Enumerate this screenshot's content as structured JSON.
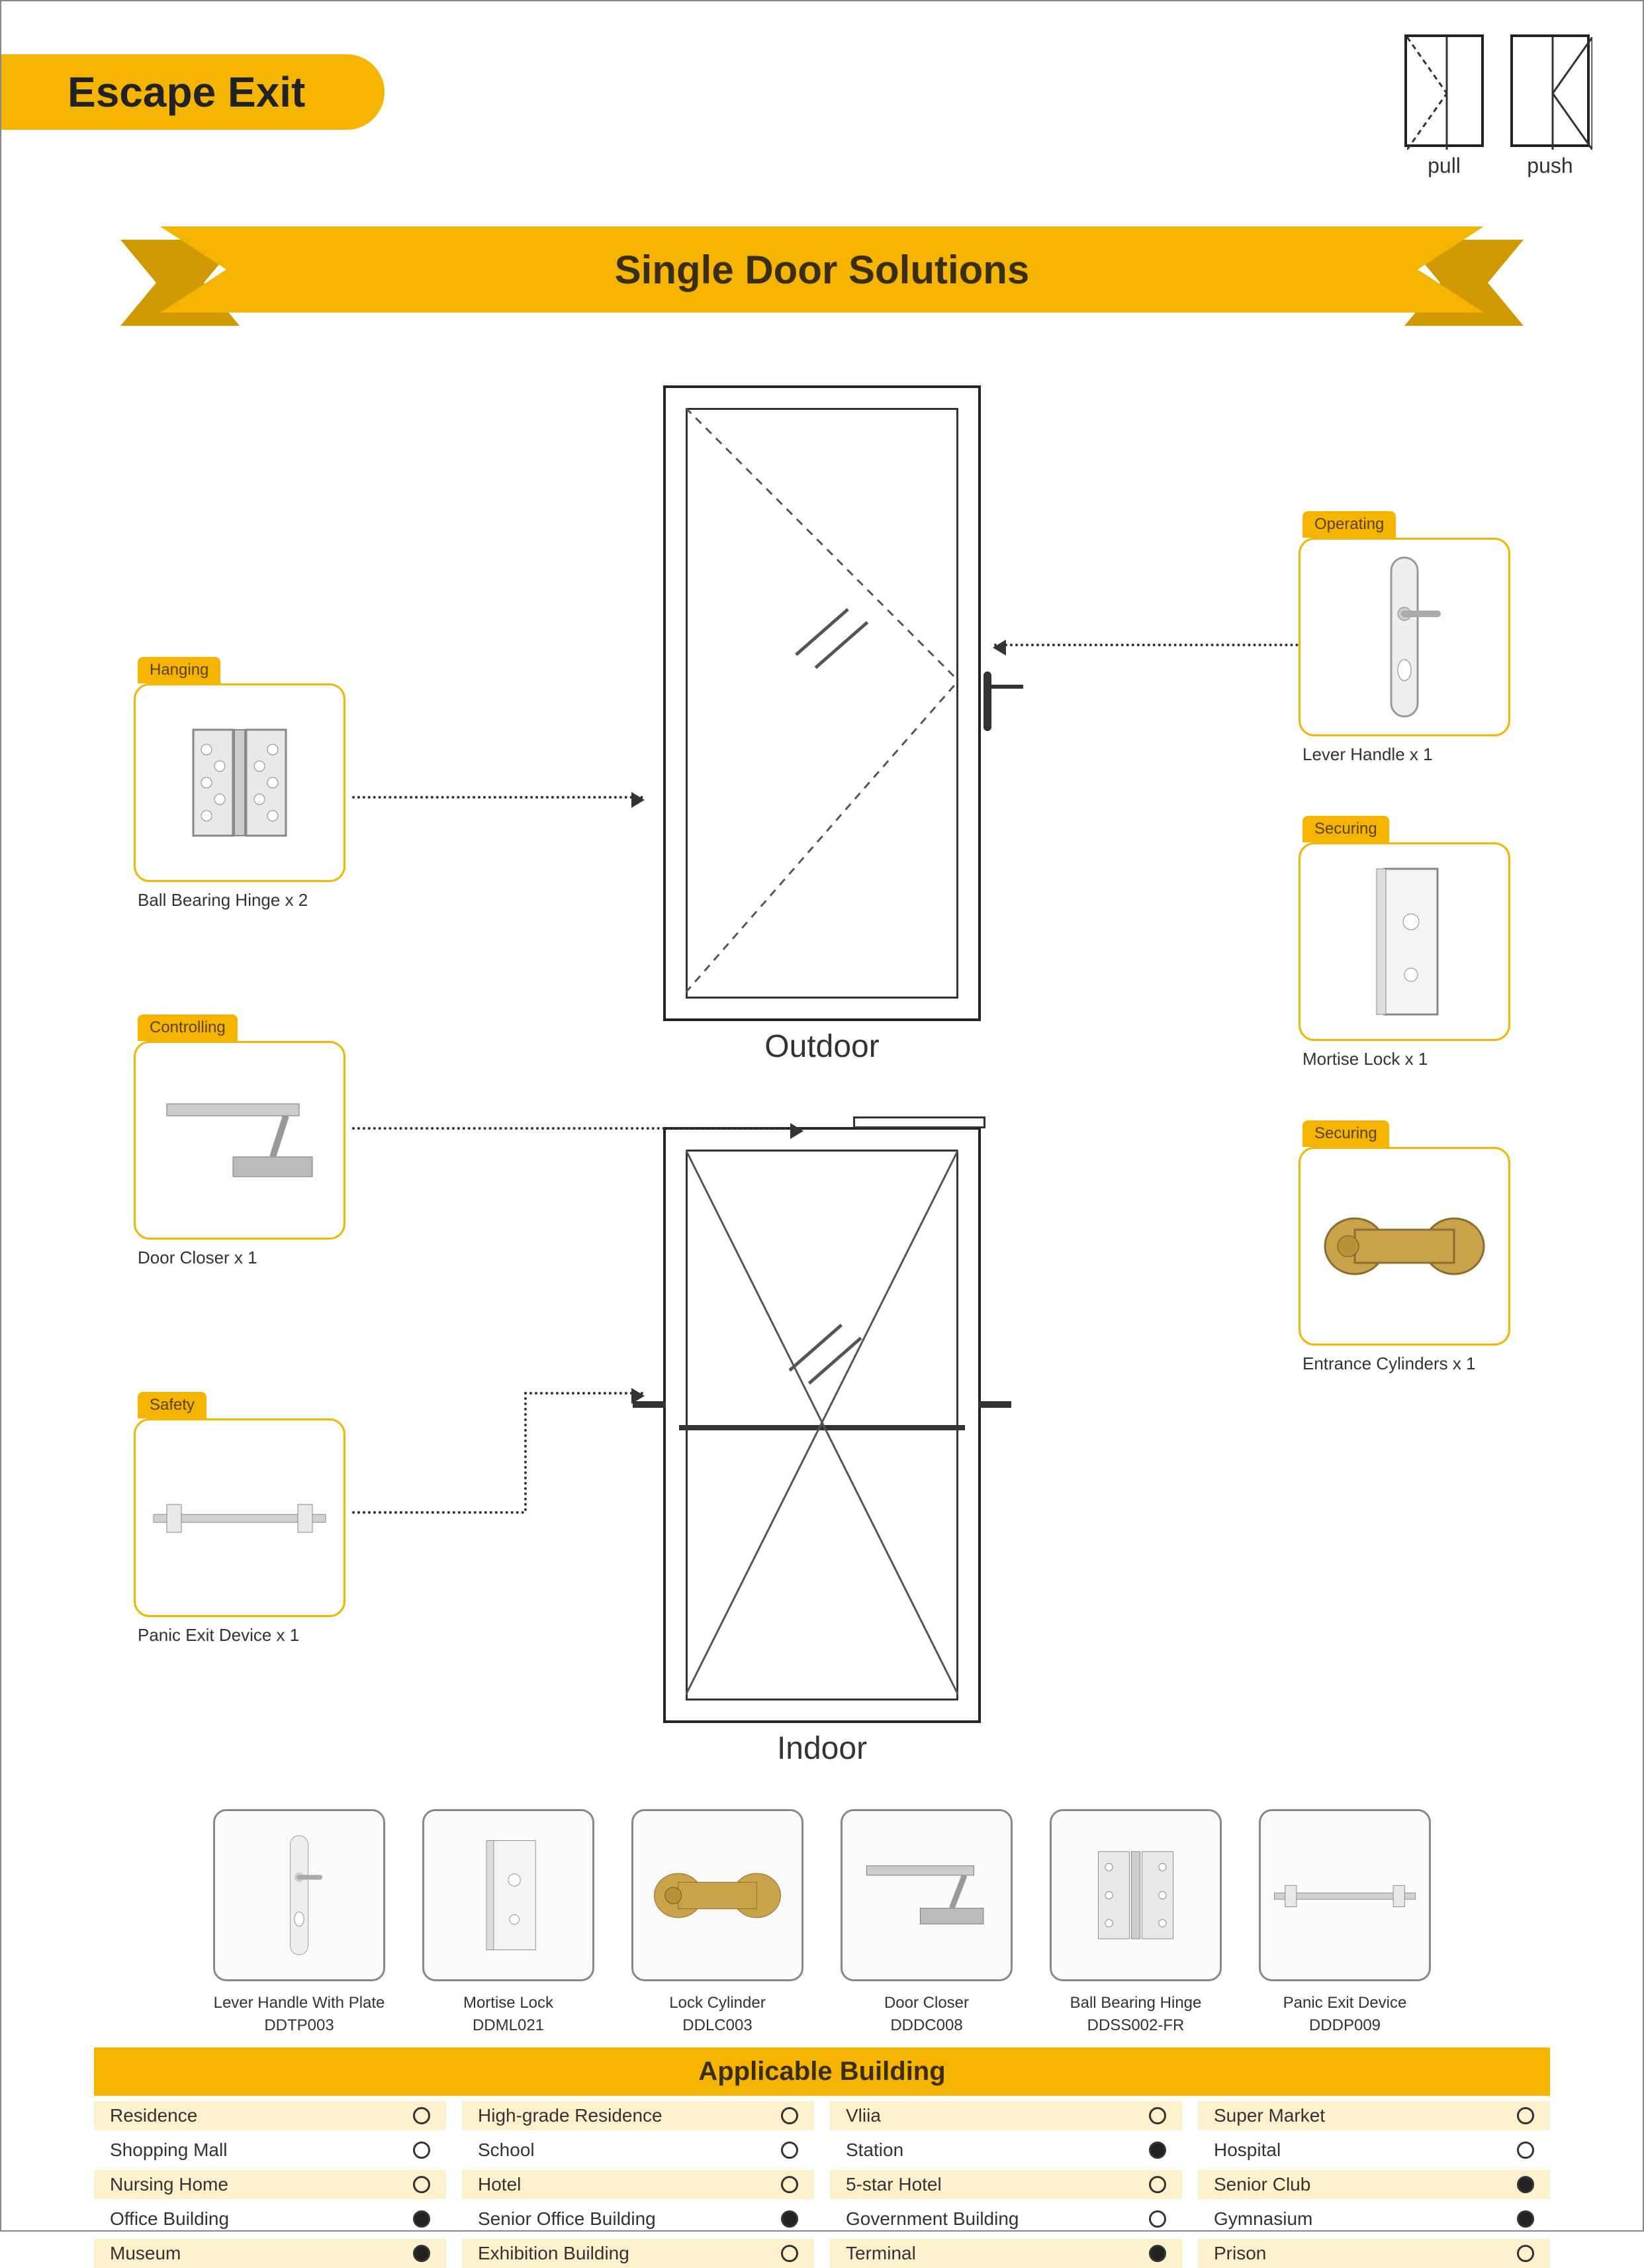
{
  "colors": {
    "accent": "#f5b400",
    "accent_dark": "#d19900",
    "text": "#333333",
    "line": "#333333"
  },
  "header": {
    "title": "Escape Exit",
    "swing": [
      {
        "mode": "pull",
        "label": "pull"
      },
      {
        "mode": "push",
        "label": "push"
      }
    ]
  },
  "ribbon": {
    "title": "Single Door Solutions"
  },
  "doors": {
    "outdoor": {
      "label": "Outdoor"
    },
    "indoor": {
      "label": "Indoor"
    }
  },
  "components": {
    "hanging": {
      "tag": "Hanging",
      "caption": "Ball Bearing Hinge x 2"
    },
    "controlling": {
      "tag": "Controlling",
      "caption": "Door Closer x 1"
    },
    "safety": {
      "tag": "Safety",
      "caption": "Panic Exit Device x 1"
    },
    "operating": {
      "tag": "Operating",
      "caption": "Lever Handle x 1"
    },
    "securing1": {
      "tag": "Securing",
      "caption": "Mortise Lock x 1"
    },
    "securing2": {
      "tag": "Securing",
      "caption": "Entrance Cylinders x 1"
    }
  },
  "products": [
    {
      "name": "Lever Handle With Plate",
      "code": "DDTP003"
    },
    {
      "name": "Mortise Lock",
      "code": "DDML021"
    },
    {
      "name": "Lock Cylinder",
      "code": "DDLC003"
    },
    {
      "name": "Door Closer",
      "code": "DDDC008"
    },
    {
      "name": "Ball Bearing Hinge",
      "code": "DDSS002-FR"
    },
    {
      "name": "Panic Exit Device",
      "code": "DDDP009"
    }
  ],
  "building_table": {
    "title": "Applicable Building",
    "rows": [
      {
        "name": "Residence",
        "on": false
      },
      {
        "name": "High-grade Residence",
        "on": false
      },
      {
        "name": "Vliia",
        "on": false
      },
      {
        "name": "Super Market",
        "on": false
      },
      {
        "name": "Shopping Mall",
        "on": false
      },
      {
        "name": "School",
        "on": false
      },
      {
        "name": "Station",
        "on": true
      },
      {
        "name": "Hospital",
        "on": false
      },
      {
        "name": "Nursing Home",
        "on": false
      },
      {
        "name": "Hotel",
        "on": false
      },
      {
        "name": "5-star Hotel",
        "on": false
      },
      {
        "name": "Senior Club",
        "on": true
      },
      {
        "name": "Office Building",
        "on": true
      },
      {
        "name": "Senior Office Building",
        "on": true
      },
      {
        "name": "Government Building",
        "on": false
      },
      {
        "name": "Gymnasium",
        "on": true
      },
      {
        "name": "Museum",
        "on": true
      },
      {
        "name": "Exhibition Building",
        "on": false
      },
      {
        "name": "Terminal",
        "on": true
      },
      {
        "name": "Prison",
        "on": false
      }
    ]
  }
}
